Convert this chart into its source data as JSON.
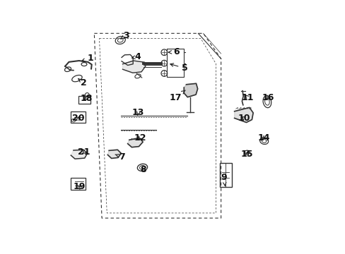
{
  "bg_color": "#ffffff",
  "line_color": "#333333",
  "arrow_color": "#222222",
  "font_size": 9
}
